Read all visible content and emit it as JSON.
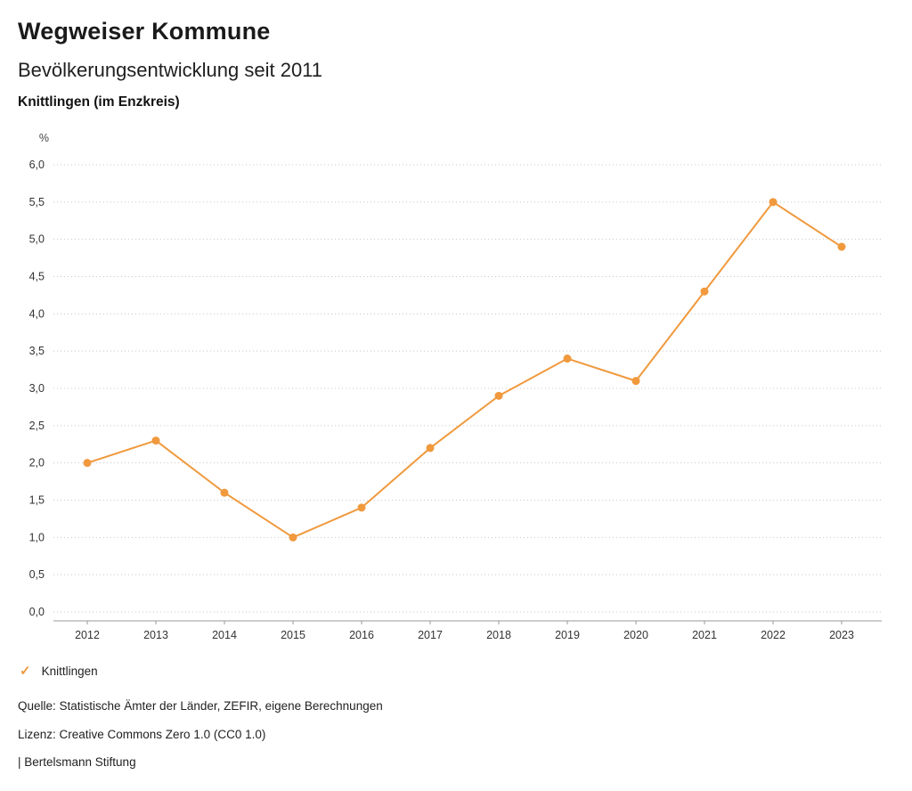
{
  "header": {
    "brand": "Wegweiser Kommune",
    "title": "Bevölkerungsentwicklung seit 2011",
    "subtitle": "Knittlingen (im Enzkreis)"
  },
  "chart_data": {
    "type": "line",
    "title": "Bevölkerungsentwicklung seit 2011",
    "subtitle": "Knittlingen (im Enzkreis)",
    "unit_label": "%",
    "categories": [
      "2012",
      "2013",
      "2014",
      "2015",
      "2016",
      "2017",
      "2018",
      "2019",
      "2020",
      "2021",
      "2022",
      "2023"
    ],
    "series": [
      {
        "name": "Knittlingen",
        "values": [
          2.0,
          2.3,
          1.6,
          1.0,
          1.4,
          2.2,
          2.9,
          3.4,
          3.1,
          4.3,
          5.5,
          4.9
        ]
      }
    ],
    "ylim": [
      0,
      6
    ],
    "y_ticks": [
      {
        "value": 0.0,
        "label": "0,0"
      },
      {
        "value": 0.5,
        "label": "0,5"
      },
      {
        "value": 1.0,
        "label": "1,0"
      },
      {
        "value": 1.5,
        "label": "1,5"
      },
      {
        "value": 2.0,
        "label": "2,0"
      },
      {
        "value": 2.5,
        "label": "2,5"
      },
      {
        "value": 3.0,
        "label": "3,0"
      },
      {
        "value": 3.5,
        "label": "3,5"
      },
      {
        "value": 4.0,
        "label": "4,0"
      },
      {
        "value": 4.5,
        "label": "4,5"
      },
      {
        "value": 5.0,
        "label": "5,0"
      },
      {
        "value": 5.5,
        "label": "5,5"
      },
      {
        "value": 6.0,
        "label": "6,0"
      }
    ],
    "grid": "horizontal-dotted",
    "line_color": "#F0993D",
    "legend_position": "bottom-left"
  },
  "legend": {
    "items": [
      {
        "label": "Knittlingen",
        "check": "✓",
        "color": "#F0993D"
      }
    ]
  },
  "footer": {
    "source": "Quelle: Statistische Ämter der Länder, ZEFIR, eigene Berechnungen",
    "license": "Lizenz: Creative Commons Zero 1.0 (CC0 1.0)",
    "attribution": "| Bertelsmann Stiftung"
  }
}
